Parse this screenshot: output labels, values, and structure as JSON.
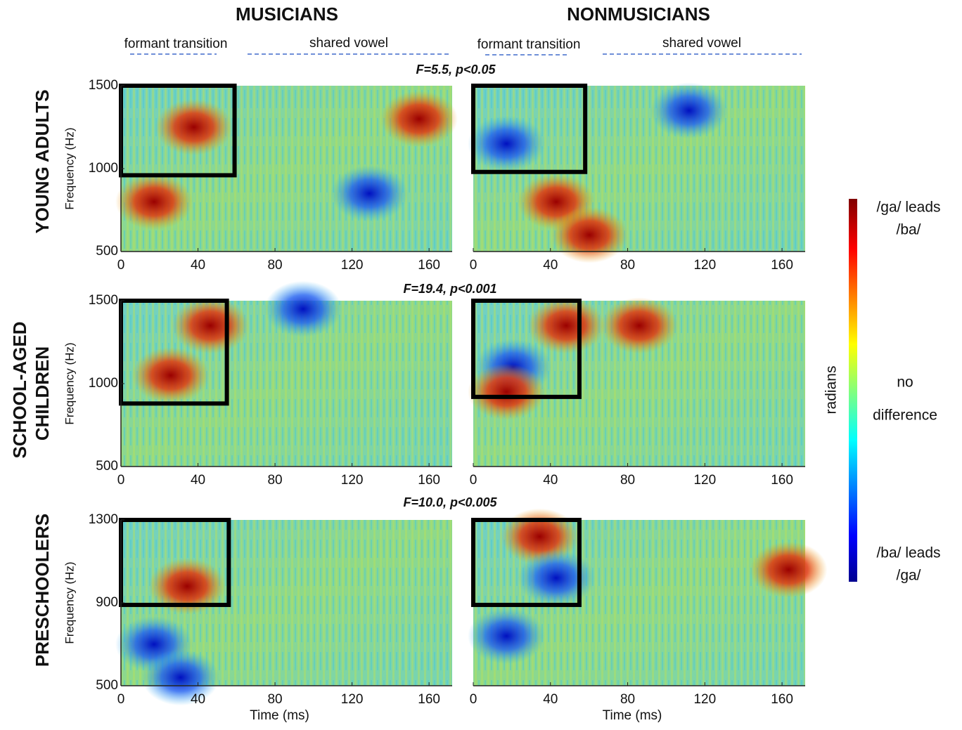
{
  "column_titles": [
    "MUSICIANS",
    "NONMUSICIANS"
  ],
  "segment_labels": [
    "formant transition",
    "shared vowel"
  ],
  "row_labels": [
    [
      "YOUNG ADULTS"
    ],
    [
      "SCHOOL-AGED",
      "CHILDREN"
    ],
    [
      "PRESCHOOLERS"
    ]
  ],
  "stats": [
    "F=5.5, p<0.05",
    "F=19.4, p<0.001",
    "F=10.0, p<0.005"
  ],
  "colorbar": {
    "label": "radians",
    "top": [
      "/ga/ leads",
      "/ba/"
    ],
    "middle": [
      "no",
      "difference"
    ],
    "bottom": [
      "/ba/ leads",
      "/ga/"
    ]
  },
  "chart_data": [
    {
      "type": "heatmap",
      "ylabel": "Frequency (Hz)",
      "xlim": [
        0,
        172
      ],
      "xticks": [
        0,
        40,
        80,
        120,
        160
      ],
      "ylim": [
        500,
        1500
      ],
      "yticks": [
        500,
        1000,
        1500
      ],
      "highlight": {
        "x": [
          0,
          59
        ],
        "y": [
          960,
          1500
        ]
      }
    },
    {
      "type": "heatmap",
      "xlim": [
        0,
        172
      ],
      "xticks": [
        0,
        40,
        80,
        120,
        160
      ],
      "ylim": [
        500,
        1500
      ],
      "highlight": {
        "x": [
          0,
          58
        ],
        "y": [
          980,
          1500
        ]
      }
    },
    {
      "type": "heatmap",
      "ylabel": "Frequency (Hz)",
      "xlim": [
        0,
        172
      ],
      "xticks": [
        0,
        40,
        80,
        120,
        160
      ],
      "ylim": [
        500,
        1500
      ],
      "yticks": [
        500,
        1000,
        1500
      ],
      "highlight": {
        "x": [
          0,
          55
        ],
        "y": [
          880,
          1500
        ]
      }
    },
    {
      "type": "heatmap",
      "xlim": [
        0,
        172
      ],
      "xticks": [
        0,
        40,
        80,
        120,
        160
      ],
      "ylim": [
        500,
        1500
      ],
      "highlight": {
        "x": [
          0,
          55
        ],
        "y": [
          920,
          1500
        ]
      }
    },
    {
      "type": "heatmap",
      "ylabel": "Frequency (Hz)",
      "xlabel": "Time (ms)",
      "xlim": [
        0,
        172
      ],
      "xticks": [
        0,
        40,
        80,
        120,
        160
      ],
      "ylim": [
        500,
        1300
      ],
      "yticks": [
        500,
        900,
        1300
      ],
      "highlight": {
        "x": [
          0,
          56
        ],
        "y": [
          890,
          1300
        ]
      }
    },
    {
      "type": "heatmap",
      "xlabel": "Time (ms)",
      "xlim": [
        0,
        172
      ],
      "xticks": [
        0,
        40,
        80,
        120,
        160
      ],
      "ylim": [
        500,
        1300
      ],
      "highlight": {
        "x": [
          0,
          55
        ],
        "y": [
          890,
          1300
        ]
      }
    }
  ]
}
